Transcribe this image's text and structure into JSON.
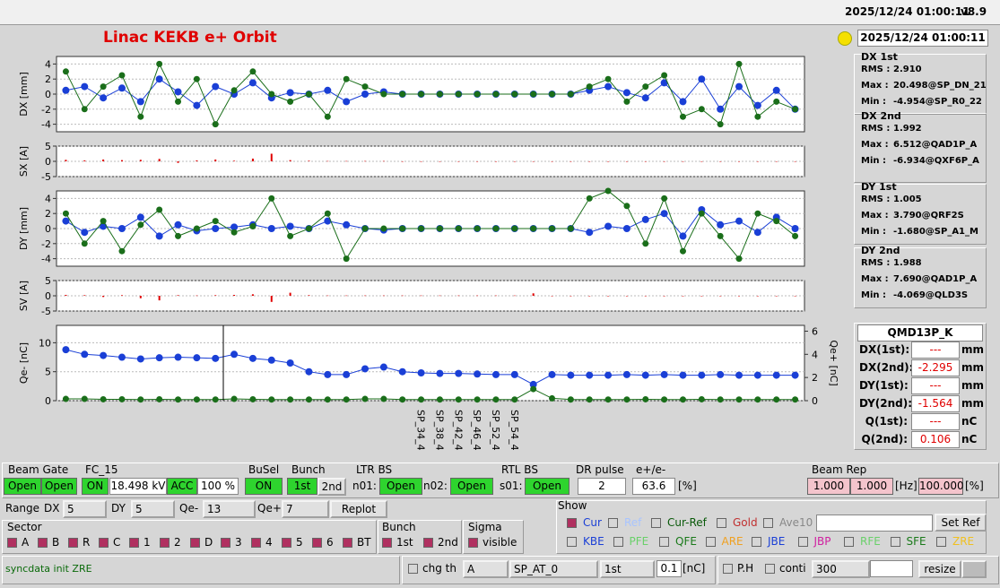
{
  "header": {
    "timestamp": "2025/12/24 01:00:11",
    "version": "v8.9"
  },
  "title": "Linac KEKB e+ Orbit",
  "clock": "2025/12/24 01:00:11",
  "chart_data": [
    {
      "type": "line",
      "y_label": "DX [mm]",
      "ylim": [
        -5,
        5
      ],
      "yticks": [
        -4,
        -2,
        0,
        2,
        4
      ],
      "grid": true,
      "series": [
        {
          "color": "#1a3fd6",
          "values": [
            0.5,
            1,
            -0.5,
            0.8,
            -1,
            2,
            0.3,
            -1.5,
            1,
            0,
            1.5,
            -0.5,
            0.2,
            0,
            0.5,
            -1,
            0,
            0.3,
            0,
            0,
            0,
            0,
            0,
            0,
            0,
            0,
            0,
            0,
            0.5,
            1,
            0.2,
            -0.5,
            1.5,
            -1,
            2,
            -2,
            1,
            -1.5,
            0.5,
            -2
          ]
        },
        {
          "color": "#1a6e1a",
          "values": [
            3,
            -2,
            1,
            2.5,
            -3,
            4,
            -1,
            2,
            -4,
            0.5,
            3,
            0,
            -1,
            0,
            -3,
            2,
            1,
            0,
            0,
            0,
            0,
            0,
            0,
            0,
            0,
            0,
            0,
            0,
            1,
            2,
            -1,
            1,
            2.5,
            -3,
            -2,
            -4,
            4,
            -3,
            -1,
            -2
          ]
        }
      ]
    },
    {
      "type": "bar",
      "y_label": "SX [A]",
      "ylim": [
        -5,
        5
      ],
      "yticks": [
        -5,
        0,
        5
      ],
      "grid": true,
      "series": [
        {
          "color": "#e00000",
          "values": [
            0.5,
            0.3,
            0.6,
            0.4,
            0.5,
            0.8,
            -0.5,
            0.3,
            0.6,
            0.2,
            0.9,
            2.5,
            0.4,
            0.2,
            0.1,
            0.1,
            0.1,
            0.1,
            0,
            0,
            0,
            0,
            0,
            0,
            0,
            0,
            0,
            0,
            0,
            0,
            0,
            0,
            0,
            0,
            0,
            0,
            0,
            0,
            0,
            0
          ]
        }
      ]
    },
    {
      "type": "line",
      "y_label": "DY [mm]",
      "ylim": [
        -5,
        5
      ],
      "yticks": [
        -4,
        -2,
        0,
        2,
        4
      ],
      "grid": true,
      "series": [
        {
          "color": "#1a3fd6",
          "values": [
            1,
            -0.5,
            0.3,
            0,
            1.5,
            -1,
            0.5,
            -0.3,
            0,
            0.2,
            0.5,
            0,
            0.3,
            0,
            1,
            0.5,
            0,
            -0.2,
            0,
            0,
            0,
            0,
            0,
            0,
            0,
            0,
            0,
            0,
            -0.5,
            0.3,
            0,
            1.2,
            2,
            -1,
            2.5,
            0.5,
            1,
            -0.5,
            1.5,
            0
          ]
        },
        {
          "color": "#1a6e1a",
          "values": [
            2,
            -2,
            1,
            -3,
            0.5,
            2.5,
            -1,
            0,
            1,
            -0.5,
            0.3,
            4,
            -1,
            0,
            2,
            -4,
            0,
            0,
            0,
            0,
            0,
            0,
            0,
            0,
            0,
            0,
            0,
            0,
            4,
            5,
            3,
            -2,
            4,
            -3,
            2,
            -1,
            -4,
            2,
            1,
            -1
          ]
        }
      ]
    },
    {
      "type": "bar",
      "y_label": "SV [A]",
      "ylim": [
        -5,
        5
      ],
      "yticks": [
        -5,
        0,
        5
      ],
      "grid": true,
      "series": [
        {
          "color": "#e00000",
          "values": [
            0.3,
            0.2,
            -0.4,
            0.2,
            -0.8,
            -1.5,
            0.2,
            0.1,
            0.2,
            0.3,
            0.5,
            -2,
            1,
            0.2,
            0.1,
            0.1,
            0.1,
            0.1,
            0.1,
            0.1,
            0.1,
            0.1,
            0.1,
            0.1,
            0.1,
            0.8,
            0,
            0,
            0,
            0,
            0,
            0,
            0,
            0,
            0,
            0,
            0,
            0,
            0,
            0
          ]
        }
      ]
    },
    {
      "type": "line",
      "y_label": "Qe- [nC]",
      "y2_label": "Qe+ [nC]",
      "ylim": [
        0,
        13
      ],
      "yticks": [
        0,
        5,
        10
      ],
      "y2lim": [
        0,
        6.5
      ],
      "y2ticks": [
        0,
        2,
        4,
        6
      ],
      "grid": true,
      "categories": [
        null,
        null,
        null,
        null,
        null,
        null,
        null,
        null,
        null,
        null,
        null,
        null,
        null,
        null,
        null,
        null,
        null,
        null,
        null,
        "SP_34_4",
        "SP_38_4",
        "SP_42_4",
        "SP_46_4",
        "SP_52_4",
        "SP_54_4",
        null,
        null,
        null,
        null,
        null,
        null,
        null,
        null,
        null,
        null,
        null,
        null,
        null,
        null,
        null
      ],
      "series": [
        {
          "color": "#1a3fd6",
          "values": [
            8.8,
            8,
            7.8,
            7.5,
            7.2,
            7.4,
            7.5,
            7.4,
            7.3,
            8,
            7.3,
            7,
            6.5,
            5,
            4.5,
            4.5,
            5.5,
            5.8,
            5,
            4.8,
            4.7,
            4.7,
            4.6,
            4.5,
            4.5,
            2.8,
            4.5,
            4.4,
            4.4,
            4.4,
            4.5,
            4.4,
            4.5,
            4.4,
            4.4,
            4.5,
            4.4,
            4.4,
            4.4,
            4.4
          ]
        },
        {
          "color": "#1a6e1a",
          "axis": "y2",
          "values": [
            0.15,
            0.15,
            0.12,
            0.12,
            0.1,
            0.12,
            0.1,
            0.1,
            0.1,
            0.15,
            0.12,
            0.1,
            0.1,
            0.1,
            0.1,
            0.1,
            0.15,
            0.15,
            0.1,
            0.1,
            0.1,
            0.1,
            0.1,
            0.1,
            0.1,
            1,
            0.2,
            0.1,
            0.1,
            0.1,
            0.1,
            0.12,
            0.1,
            0.1,
            0.12,
            0.1,
            0.1,
            0.1,
            0.1,
            0.1
          ]
        }
      ]
    }
  ],
  "stats": [
    {
      "title": "DX 1st",
      "rows": [
        [
          "RMS :",
          "2.910"
        ],
        [
          "Max :",
          "20.498@SP_DN_21"
        ],
        [
          "Min :",
          "-4.954@SP_R0_22"
        ]
      ]
    },
    {
      "title": "DX 2nd",
      "rows": [
        [
          "RMS :",
          "1.992"
        ],
        [
          "Max :",
          "6.512@QAD1P_A"
        ],
        [
          "Min :",
          "-6.934@QXF6P_A"
        ]
      ]
    },
    {
      "title": "DY 1st",
      "rows": [
        [
          "RMS :",
          "1.005"
        ],
        [
          "Max :",
          "3.790@QRF2S"
        ],
        [
          "Min :",
          "-1.680@SP_A1_M"
        ]
      ]
    },
    {
      "title": "DY 2nd",
      "rows": [
        [
          "RMS :",
          "1.988"
        ],
        [
          "Max :",
          "7.690@QAD1P_A"
        ],
        [
          "Min :",
          "-4.069@QLD3S"
        ]
      ]
    }
  ],
  "monitor": {
    "name": "QMD13P_K",
    "rows": [
      [
        "DX(1st):",
        "---",
        "mm"
      ],
      [
        "DX(2nd):",
        "-2.295",
        "mm"
      ],
      [
        "DY(1st):",
        "---",
        "mm"
      ],
      [
        "DY(2nd):",
        "-1.564",
        "mm"
      ],
      [
        "Q(1st):",
        "---",
        "nC"
      ],
      [
        "Q(2nd):",
        "0.106",
        "nC"
      ]
    ]
  },
  "controls": {
    "beam_gate": {
      "label": "Beam Gate",
      "a": "Open",
      "b": "Open"
    },
    "fc": {
      "label": "FC_15",
      "on": "ON",
      "kv": "18.498 kV",
      "acc": "ACC",
      "pct": "100 %"
    },
    "busel": {
      "label": "BuSel",
      "on": "ON"
    },
    "bunch": {
      "label": "Bunch",
      "a": "1st",
      "b": "2nd"
    },
    "ltr": {
      "label": "LTR BS",
      "n01": "n01:",
      "n01v": "Open",
      "n02": "n02:",
      "n02v": "Open"
    },
    "rtl": {
      "label": "RTL BS",
      "s01": "s01:",
      "s01v": "Open"
    },
    "dr": {
      "label": "DR pulse",
      "value": "2"
    },
    "ratio": {
      "label": "e+/e-",
      "value": "63.6",
      "unit": "[%]"
    },
    "rep": {
      "label": "Beam Rep",
      "a": "1.000",
      "b": "1.000",
      "hz": "[Hz]",
      "pct": "100.000",
      "pu": "[%]"
    },
    "range": {
      "label": "Range",
      "dx": "DX",
      "dxv": "5",
      "dy": "DY",
      "dyv": "5",
      "qe": "Qe-",
      "qev": "13",
      "qp": "Qe+",
      "qpv": "7",
      "replot": "Replot"
    },
    "sector": {
      "label": "Sector",
      "items": [
        "A",
        "B",
        "R",
        "C",
        "1",
        "2",
        "D",
        "3",
        "4",
        "5",
        "6",
        "BT"
      ]
    },
    "bunch2": {
      "label": "Bunch",
      "items": [
        "1st",
        "2nd"
      ]
    },
    "sigma": {
      "label": "Sigma",
      "item": "visible"
    },
    "show": {
      "label": "Show",
      "row1": [
        "Cur",
        "Ref",
        "Cur-Ref",
        "Gold",
        "Ave10"
      ],
      "set_ref": "Set Ref",
      "row2": [
        "KBE",
        "PFE",
        "QFE",
        "ARE",
        "JBE",
        "JBP",
        "RFE",
        "SFE",
        "ZRE"
      ]
    },
    "status": "syncdata init ZRE",
    "chg": {
      "label": "chg th",
      "a": "A",
      "b": "SP_AT_0",
      "c": "1st",
      "v": "0.1",
      "u": "[nC]"
    },
    "ph": {
      "label": "P.H",
      "conti": "conti",
      "n": "300",
      "resize": "resize"
    }
  }
}
